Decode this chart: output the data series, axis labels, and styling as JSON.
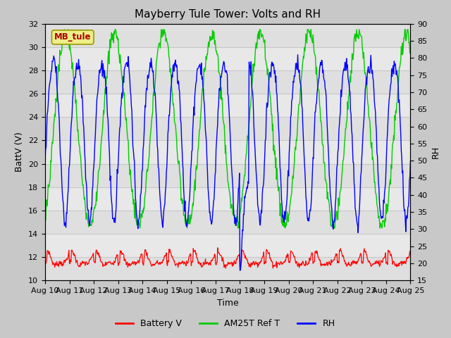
{
  "title": "Mayberry Tule Tower: Volts and RH",
  "xlabel": "Time",
  "ylabel_left": "BattV (V)",
  "ylabel_right": "RH",
  "ylim_left": [
    10,
    32
  ],
  "ylim_right": [
    15,
    90
  ],
  "yticks_left": [
    10,
    12,
    14,
    16,
    18,
    20,
    22,
    24,
    26,
    28,
    30,
    32
  ],
  "yticks_right": [
    15,
    20,
    25,
    30,
    35,
    40,
    45,
    50,
    55,
    60,
    65,
    70,
    75,
    80,
    85,
    90
  ],
  "xtick_labels": [
    "Aug 10",
    "Aug 11",
    "Aug 12",
    "Aug 13",
    "Aug 14",
    "Aug 15",
    "Aug 16",
    "Aug 17",
    "Aug 18",
    "Aug 19",
    "Aug 20",
    "Aug 21",
    "Aug 22",
    "Aug 23",
    "Aug 24",
    "Aug 25"
  ],
  "color_battery": "#ff0000",
  "color_am25t": "#00cc00",
  "color_rh": "#0000ff",
  "color_grid": "#c8c8c8",
  "color_bg_inner": "#e8e8e8",
  "color_bg_outer": "#c8c8c8",
  "label_battery": "Battery V",
  "label_am25t": "AM25T Ref T",
  "label_rh": "RH",
  "station_label": "MB_tule",
  "station_box_facecolor": "#eeee88",
  "station_box_edgecolor": "#999900",
  "title_fontsize": 11,
  "axis_fontsize": 9,
  "tick_fontsize": 8
}
